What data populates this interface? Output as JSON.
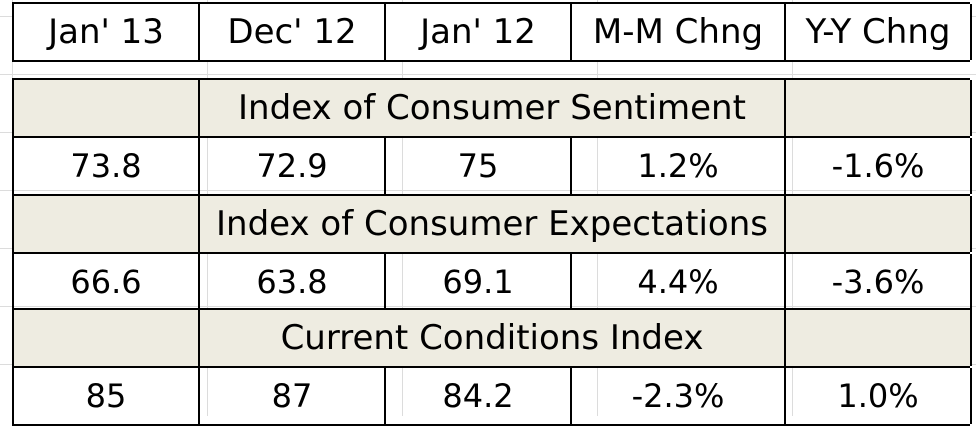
{
  "columns": [
    "Jan' 13",
    "Dec' 12",
    "Jan' 12",
    "M-M Chng",
    "Y-Y Chng"
  ],
  "sections": [
    {
      "title": "Index of Consumer Sentiment",
      "values": [
        "73.8",
        "72.9",
        "75",
        "1.2%",
        "-1.6%"
      ]
    },
    {
      "title": "Index of Consumer Expectations",
      "values": [
        "66.6",
        "63.8",
        "69.1",
        "4.4%",
        "-3.6%"
      ]
    },
    {
      "title": "Current Conditions Index",
      "values": [
        "85",
        "87",
        "84.2",
        "-2.3%",
        "1.0%"
      ]
    }
  ],
  "colors": {
    "section_fill": "#eeece1",
    "border": "#000000",
    "background": "#ffffff"
  }
}
